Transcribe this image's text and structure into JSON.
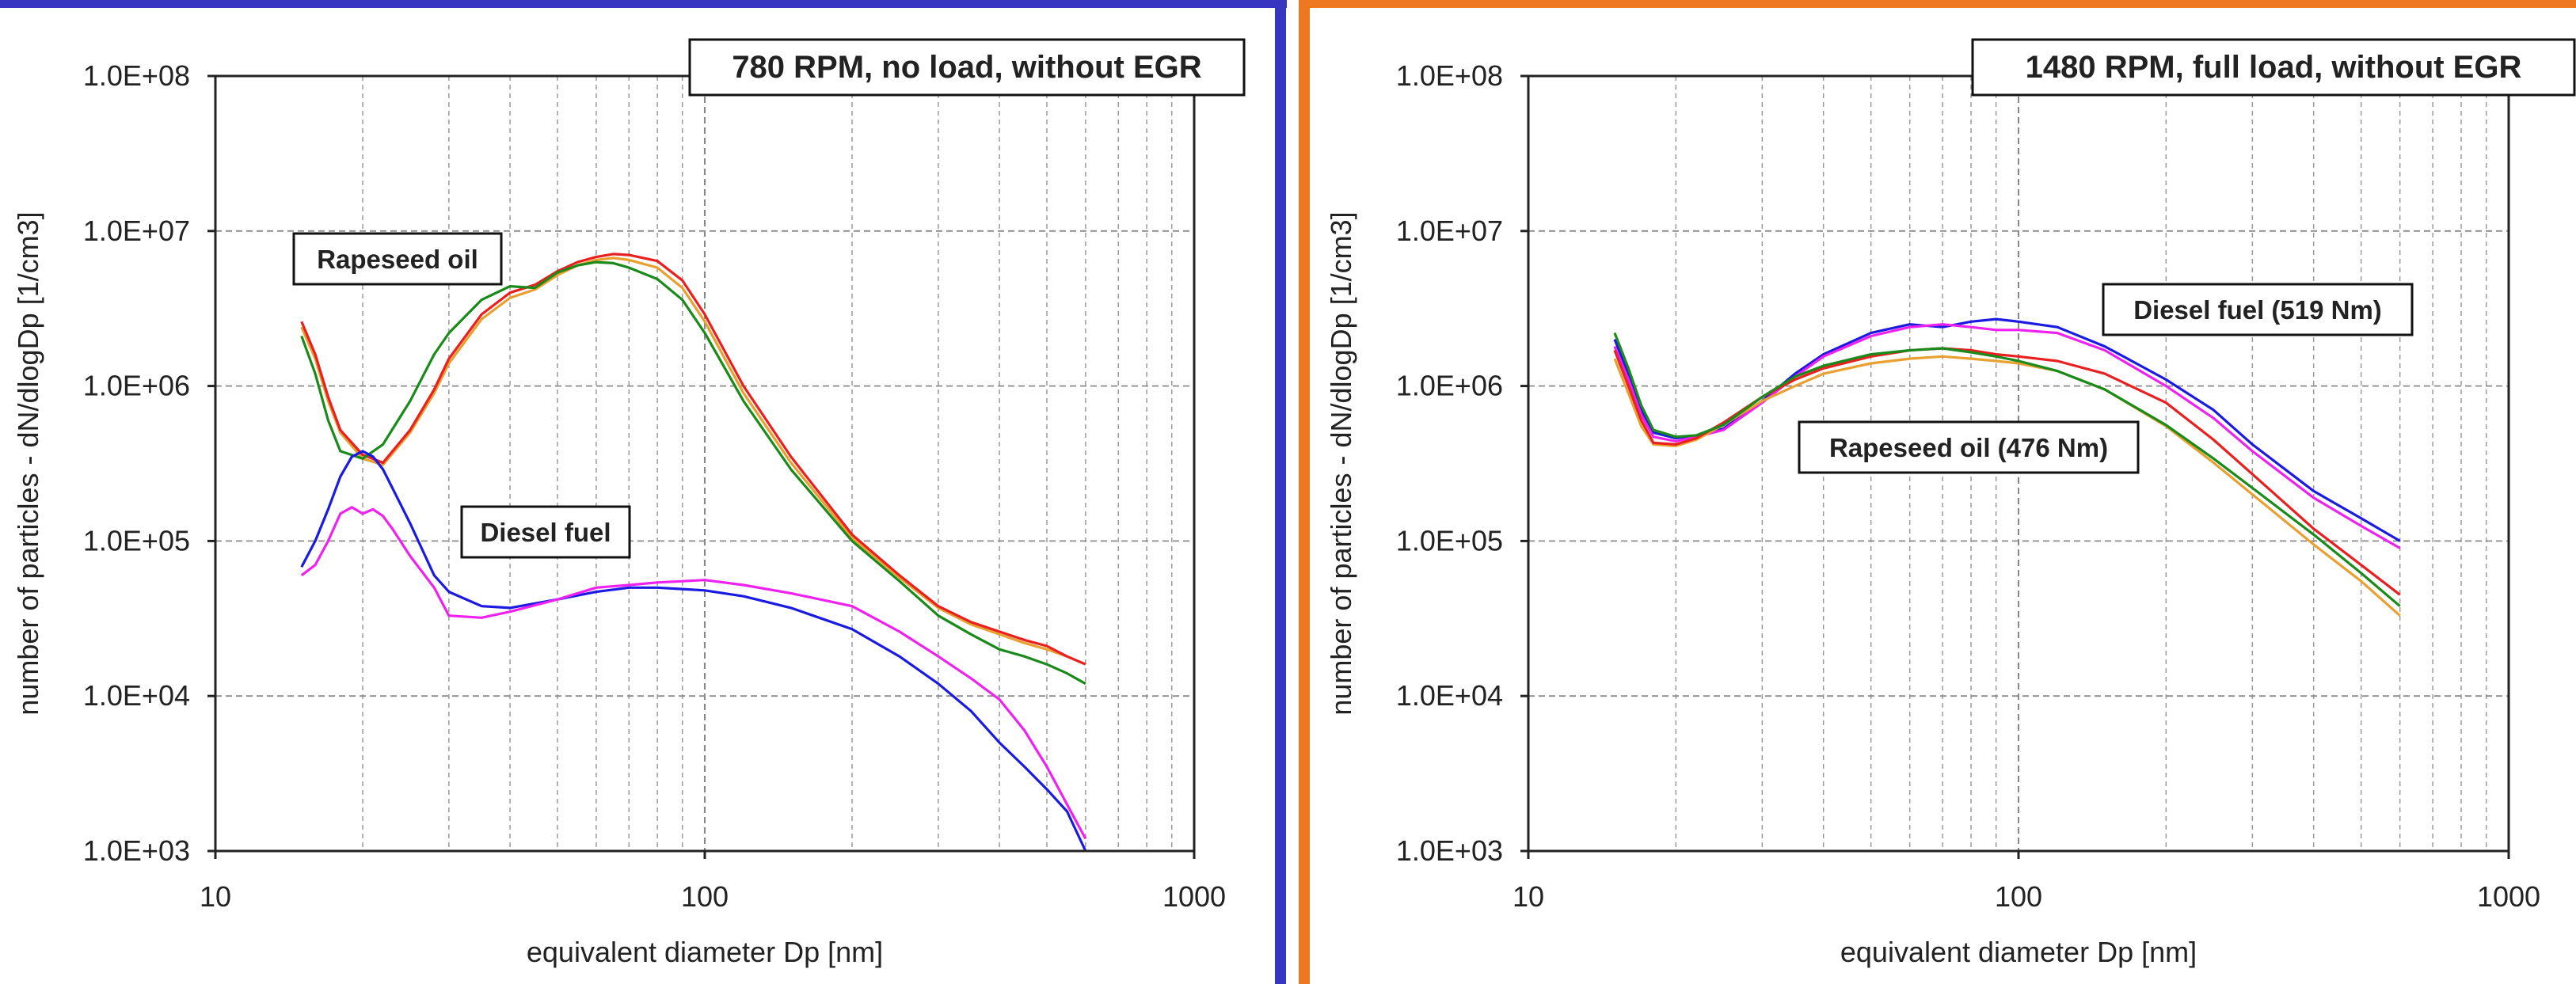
{
  "chart_data": [
    {
      "type": "line",
      "title": "780 RPM, no load, without EGR",
      "xlabel": "equivalent diameter Dp [nm]",
      "ylabel": "number of particles - dN/dlogDp [1/cm3]",
      "x_scale": "log",
      "y_scale": "log",
      "xlim": [
        10,
        1000
      ],
      "ylim": [
        1000,
        100000000
      ],
      "x_ticks": [
        "10",
        "100",
        "1000"
      ],
      "y_ticks": [
        "1.0E+03",
        "1.0E+04",
        "1.0E+05",
        "1.0E+06",
        "1.0E+07",
        "1.0E+08"
      ],
      "grid": true,
      "frame_color": "#3636c0",
      "annotations": [
        "Rapeseed oil",
        "Diesel fuel"
      ],
      "series": [
        {
          "color": "#e8a030",
          "group": "Rapeseed oil",
          "x": [
            15,
            16,
            17,
            18,
            20,
            22,
            25,
            28,
            30,
            35,
            40,
            45,
            50,
            55,
            60,
            65,
            70,
            80,
            90,
            100,
            120,
            150,
            200,
            250,
            300,
            350,
            400,
            450,
            500,
            550,
            600
          ],
          "y": [
            2400000,
            1500000,
            800000,
            500000,
            340000,
            310000,
            500000,
            900000,
            1400000,
            2700000,
            3700000,
            4200000,
            5200000,
            6000000,
            6500000,
            6700000,
            6500000,
            5800000,
            4300000,
            2600000,
            900000,
            320000,
            105000,
            58000,
            37000,
            29000,
            25000,
            22000,
            20000,
            18000,
            16000
          ]
        },
        {
          "color": "#e82020",
          "group": "Rapeseed oil",
          "x": [
            15,
            16,
            17,
            18,
            20,
            22,
            25,
            28,
            30,
            35,
            40,
            45,
            50,
            55,
            60,
            65,
            70,
            80,
            90,
            100,
            120,
            150,
            200,
            250,
            300,
            350,
            400,
            450,
            500,
            550,
            600
          ],
          "y": [
            2600000,
            1600000,
            850000,
            520000,
            360000,
            320000,
            520000,
            950000,
            1500000,
            2900000,
            4000000,
            4500000,
            5500000,
            6300000,
            6800000,
            7100000,
            7000000,
            6400000,
            4800000,
            2900000,
            1000000,
            350000,
            110000,
            60000,
            38000,
            30000,
            26000,
            23000,
            21000,
            18000,
            16000
          ]
        },
        {
          "color": "#1a8a1a",
          "group": "Rapeseed oil",
          "x": [
            15,
            16,
            17,
            18,
            20,
            22,
            25,
            28,
            30,
            35,
            40,
            45,
            50,
            55,
            60,
            65,
            70,
            80,
            90,
            100,
            120,
            150,
            200,
            250,
            300,
            350,
            400,
            450,
            500,
            550,
            600
          ],
          "y": [
            2100000,
            1200000,
            600000,
            380000,
            340000,
            420000,
            800000,
            1600000,
            2200000,
            3600000,
            4400000,
            4300000,
            5400000,
            6000000,
            6300000,
            6200000,
            5800000,
            4900000,
            3600000,
            2200000,
            800000,
            290000,
            100000,
            55000,
            33000,
            25000,
            20000,
            18000,
            16000,
            14000,
            12000
          ]
        },
        {
          "color": "#1a1ae0",
          "group": "Diesel fuel",
          "x": [
            15,
            16,
            17,
            18,
            19,
            20,
            21,
            22,
            23,
            25,
            28,
            30,
            35,
            40,
            50,
            60,
            70,
            80,
            90,
            100,
            120,
            150,
            200,
            250,
            300,
            350,
            400,
            450,
            500,
            550,
            600
          ],
          "y": [
            68000,
            100000,
            160000,
            260000,
            350000,
            380000,
            350000,
            290000,
            220000,
            130000,
            60000,
            47000,
            38000,
            37000,
            42000,
            47000,
            50000,
            50000,
            49000,
            48000,
            44000,
            37000,
            27000,
            18000,
            12000,
            8000,
            5000,
            3500,
            2500,
            1800,
            1000
          ]
        },
        {
          "color": "#ee22ee",
          "group": "Diesel fuel",
          "x": [
            15,
            16,
            17,
            18,
            19,
            20,
            21,
            22,
            23,
            25,
            28,
            30,
            35,
            40,
            50,
            60,
            70,
            80,
            90,
            100,
            120,
            150,
            200,
            250,
            300,
            350,
            400,
            450,
            500,
            550,
            600
          ],
          "y": [
            60000,
            70000,
            100000,
            150000,
            165000,
            150000,
            160000,
            145000,
            120000,
            80000,
            50000,
            33000,
            32000,
            35000,
            42000,
            50000,
            52000,
            54000,
            55000,
            56000,
            52000,
            46000,
            38000,
            26000,
            18000,
            13000,
            9500,
            6000,
            3500,
            2000,
            1200
          ]
        }
      ]
    },
    {
      "type": "line",
      "title": "1480 RPM, full load, without EGR",
      "xlabel": "equivalent diameter Dp [nm]",
      "ylabel": "number of particles - dN/dlogDp [1/cm3]",
      "x_scale": "log",
      "y_scale": "log",
      "xlim": [
        10,
        1000
      ],
      "ylim": [
        1000,
        100000000
      ],
      "x_ticks": [
        "10",
        "100",
        "1000"
      ],
      "y_ticks": [
        "1.0E+03",
        "1.0E+04",
        "1.0E+05",
        "1.0E+06",
        "1.0E+07",
        "1.0E+08"
      ],
      "grid": true,
      "frame_color": "#ee7722",
      "annotations": [
        "Diesel fuel (519 Nm)",
        "Rapeseed oil (476 Nm)"
      ],
      "series": [
        {
          "color": "#1a1ae0",
          "group": "Diesel fuel (519 Nm)",
          "x": [
            15,
            16,
            17,
            18,
            20,
            22,
            25,
            30,
            35,
            40,
            50,
            60,
            70,
            80,
            90,
            100,
            120,
            150,
            200,
            250,
            300,
            400,
            500,
            600
          ],
          "y": [
            2000000,
            1200000,
            700000,
            500000,
            460000,
            480000,
            530000,
            800000,
            1200000,
            1600000,
            2200000,
            2500000,
            2400000,
            2600000,
            2700000,
            2600000,
            2400000,
            1800000,
            1100000,
            700000,
            420000,
            210000,
            140000,
            100000
          ]
        },
        {
          "color": "#ee22ee",
          "group": "Diesel fuel (519 Nm)",
          "x": [
            15,
            16,
            17,
            18,
            20,
            22,
            25,
            30,
            35,
            40,
            50,
            60,
            70,
            80,
            90,
            100,
            120,
            150,
            200,
            250,
            300,
            400,
            500,
            600
          ],
          "y": [
            1800000,
            1100000,
            650000,
            470000,
            440000,
            470000,
            520000,
            780000,
            1150000,
            1550000,
            2100000,
            2400000,
            2500000,
            2400000,
            2300000,
            2300000,
            2200000,
            1700000,
            1000000,
            620000,
            380000,
            190000,
            125000,
            90000
          ]
        },
        {
          "color": "#e8a030",
          "group": "Rapeseed oil (476 Nm)",
          "x": [
            15,
            16,
            17,
            18,
            20,
            22,
            25,
            30,
            35,
            40,
            50,
            60,
            70,
            80,
            90,
            100,
            120,
            150,
            200,
            250,
            300,
            400,
            500,
            600
          ],
          "y": [
            1500000,
            900000,
            550000,
            420000,
            410000,
            450000,
            560000,
            800000,
            1000000,
            1200000,
            1400000,
            1500000,
            1550000,
            1500000,
            1450000,
            1400000,
            1250000,
            950000,
            550000,
            320000,
            200000,
            95000,
            55000,
            33000
          ]
        },
        {
          "color": "#e82020",
          "group": "Rapeseed oil (476 Nm)",
          "x": [
            15,
            16,
            17,
            18,
            20,
            22,
            25,
            30,
            35,
            40,
            50,
            60,
            70,
            80,
            90,
            100,
            120,
            150,
            200,
            250,
            300,
            400,
            500,
            600
          ],
          "y": [
            1700000,
            1000000,
            600000,
            430000,
            420000,
            460000,
            580000,
            850000,
            1100000,
            1300000,
            1550000,
            1700000,
            1750000,
            1700000,
            1600000,
            1550000,
            1450000,
            1200000,
            780000,
            450000,
            270000,
            120000,
            70000,
            45000
          ]
        },
        {
          "color": "#1a8a1a",
          "group": "Rapeseed oil (476 Nm)",
          "x": [
            15,
            16,
            17,
            18,
            20,
            22,
            25,
            30,
            35,
            40,
            50,
            60,
            70,
            80,
            90,
            100,
            120,
            150,
            200,
            250,
            300,
            400,
            500,
            600
          ],
          "y": [
            2200000,
            1300000,
            750000,
            520000,
            470000,
            480000,
            560000,
            850000,
            1150000,
            1350000,
            1600000,
            1700000,
            1750000,
            1650000,
            1550000,
            1450000,
            1250000,
            950000,
            560000,
            340000,
            220000,
            110000,
            62000,
            38000
          ]
        }
      ]
    }
  ]
}
